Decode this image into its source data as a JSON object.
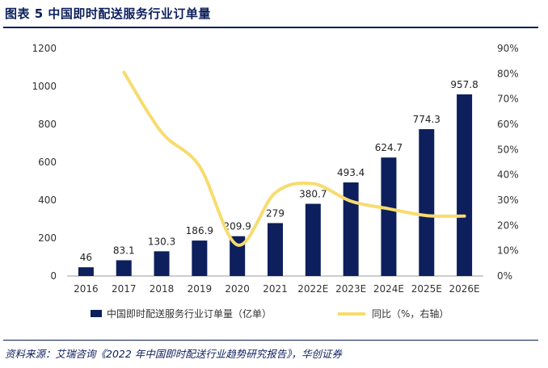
{
  "header": {
    "title": "图表 5 中国即时配送服务行业订单量"
  },
  "footer": {
    "source": "资料来源：艾瑞咨询《2022 年中国即时配送行业趋势研究报告》，华创证券"
  },
  "chart_data": {
    "type": "bar",
    "categories": [
      "2016",
      "2017",
      "2018",
      "2019",
      "2020",
      "2021",
      "2022E",
      "2023E",
      "2024E",
      "2025E",
      "2026E"
    ],
    "series": [
      {
        "name": "中国即时配送服务行业订单量（亿单）",
        "type": "bar",
        "axis": "left",
        "color": "#0d1f5c",
        "values": [
          46,
          83.1,
          130.3,
          186.9,
          209.9,
          279,
          380.7,
          493.4,
          624.7,
          774.3,
          957.8
        ],
        "labels": [
          "46",
          "83.1",
          "130.3",
          "186.9",
          "209.9",
          "279",
          "380.7",
          "493.4",
          "624.7",
          "774.3",
          "957.8"
        ]
      },
      {
        "name": "同比（%，右轴）",
        "type": "line",
        "axis": "right",
        "color": "#f7dc6f",
        "values": [
          null,
          80.6,
          56.8,
          43.4,
          12.3,
          32.9,
          36.5,
          29.6,
          26.6,
          23.9,
          23.7
        ]
      }
    ],
    "y_left": {
      "min": 0,
      "max": 1200,
      "ticks": [
        "0",
        "200",
        "400",
        "600",
        "800",
        "1000",
        "1200"
      ]
    },
    "y_right": {
      "min": 0,
      "max": 90,
      "ticks": [
        "0%",
        "10%",
        "20%",
        "30%",
        "40%",
        "50%",
        "60%",
        "70%",
        "80%",
        "90%"
      ]
    },
    "legend": {
      "position": "bottom",
      "bar_label": "中国即时配送服务行业订单量（亿单）",
      "line_label": "同比（%，右轴）"
    }
  }
}
